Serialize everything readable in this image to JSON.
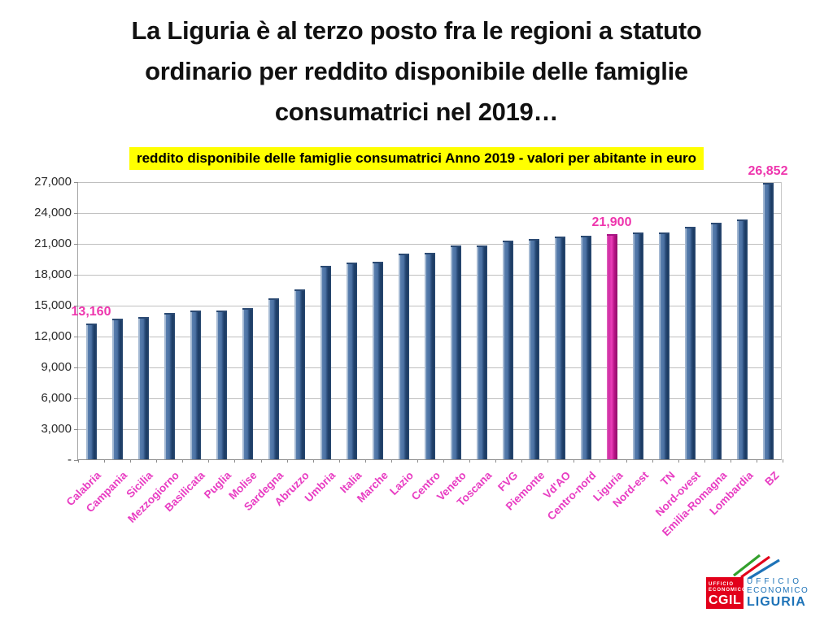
{
  "title": {
    "lines": [
      "La Liguria è al terzo posto fra le regioni a statuto",
      "ordinario per reddito disponibile delle famiglie",
      "consumatrici nel 2019…"
    ]
  },
  "banner": {
    "text": "reddito disponibile delle famiglie consumatrici Anno 2019 - valori per abitante in euro",
    "background": "#ffff00"
  },
  "chart_data": {
    "type": "bar",
    "title": "reddito disponibile delle famiglie consumatrici Anno 2019 - valori per abitante in euro",
    "categories": [
      "Calabria",
      "Campania",
      "Sicilia",
      "Mezzogiorno",
      "Basilicata",
      "Puglia",
      "Molise",
      "Sardegna",
      "Abruzzo",
      "Umbria",
      "Italia",
      "Marche",
      "Lazio",
      "Centro",
      "Veneto",
      "Toscana",
      "FVG",
      "Piemonte",
      "Vd'AO",
      "Centro-nord",
      "Liguria",
      "Nord-est",
      "TN",
      "Nord-ovest",
      "Emilia-Romagna",
      "Lombardia",
      "BZ"
    ],
    "values": [
      13160,
      13660,
      13840,
      14180,
      14410,
      14470,
      14650,
      15640,
      16480,
      18830,
      19080,
      19170,
      20000,
      20050,
      20760,
      20780,
      21250,
      21420,
      21610,
      21690,
      21900,
      22010,
      22060,
      22580,
      23000,
      23260,
      26852
    ],
    "highlight_category": "Liguria",
    "highlight_color": "#d92bb0",
    "bar_color": "#4a70a2",
    "ylim": [
      0,
      27000
    ],
    "ytick_step": 3000,
    "ytick_labels": [
      "27,000",
      "24,000",
      "21,000",
      "18,000",
      "15,000",
      "12,000",
      "9,000",
      "6,000",
      "3,000",
      "-"
    ],
    "grid": true,
    "legend": "none",
    "xlabel_rotation": 45,
    "data_labels": [
      {
        "category": "Calabria",
        "text": "13,160"
      },
      {
        "category": "Liguria",
        "text": "21,900"
      },
      {
        "category": "BZ",
        "text": "26,852"
      }
    ],
    "data_label_color": "#ee35ad",
    "xtick_label_color": "#e83cc2"
  },
  "logo": {
    "box_line1": "UFFICIO",
    "box_line2": "ECONOMICO",
    "box_line3": "CGIL",
    "right_line1": "UFFICIO",
    "right_line2": "ECONOMICO",
    "right_line3": "LIGURIA",
    "red": "#e2001a",
    "blue": "#1e73b8"
  }
}
